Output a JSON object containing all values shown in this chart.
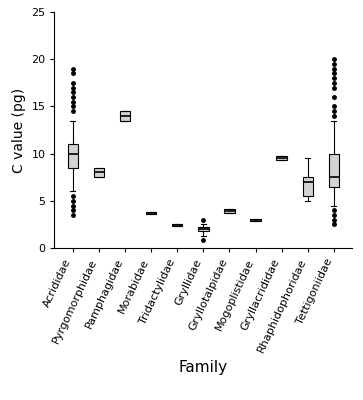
{
  "families": [
    "Acrididae",
    "Pyrgomorphidae",
    "Pamphagidae",
    "Morabidae",
    "Tridactylidae",
    "Gryllidae",
    "Gryllotalpidae",
    "Mogoplistidae",
    "Gryllacrididae",
    "Rhaphidophoridae",
    "Tettigoniidae"
  ],
  "box_stats": [
    {
      "med": 10.0,
      "q1": 8.5,
      "q3": 11.0,
      "whislo": 6.0,
      "whishi": 13.5,
      "fliers": [
        3.5,
        4.0,
        4.5,
        5.0,
        5.5,
        14.5,
        15.0,
        15.5,
        16.0,
        16.5,
        17.0,
        17.5,
        18.5,
        19.0
      ]
    },
    {
      "med": 8.0,
      "q1": 7.5,
      "q3": 8.5,
      "whislo": 7.5,
      "whishi": 8.5,
      "fliers": []
    },
    {
      "med": 14.0,
      "q1": 13.5,
      "q3": 14.5,
      "whislo": 13.5,
      "whishi": 14.5,
      "fliers": []
    },
    {
      "med": 3.7,
      "q1": 3.6,
      "q3": 3.8,
      "whislo": 3.6,
      "whishi": 3.8,
      "fliers": []
    },
    {
      "med": 2.4,
      "q1": 2.3,
      "q3": 2.5,
      "whislo": 2.3,
      "whishi": 2.5,
      "fliers": []
    },
    {
      "med": 2.0,
      "q1": 1.8,
      "q3": 2.2,
      "whislo": 1.3,
      "whishi": 2.5,
      "fliers": [
        0.8,
        3.0
      ]
    },
    {
      "med": 3.9,
      "q1": 3.7,
      "q3": 4.1,
      "whislo": 3.7,
      "whishi": 4.1,
      "fliers": []
    },
    {
      "med": 3.0,
      "q1": 2.9,
      "q3": 3.1,
      "whislo": 2.9,
      "whishi": 3.1,
      "fliers": []
    },
    {
      "med": 9.5,
      "q1": 9.3,
      "q3": 9.7,
      "whislo": 9.3,
      "whishi": 9.7,
      "fliers": []
    },
    {
      "med": 7.0,
      "q1": 5.5,
      "q3": 7.5,
      "whislo": 5.0,
      "whishi": 9.5,
      "fliers": []
    },
    {
      "med": 7.5,
      "q1": 6.5,
      "q3": 10.0,
      "whislo": 4.5,
      "whishi": 13.5,
      "fliers": [
        2.5,
        3.0,
        3.5,
        4.0,
        14.0,
        14.5,
        15.0,
        16.0,
        17.0,
        17.5,
        18.0,
        18.5,
        19.0,
        19.5,
        20.0
      ]
    }
  ],
  "ylabel": "C value (pg)",
  "xlabel": "Family",
  "ylim": [
    0,
    25
  ],
  "yticks": [
    0,
    5,
    10,
    15,
    20,
    25
  ],
  "box_color": "#d3d3d3",
  "median_color": "#000000",
  "whisker_color": "#000000",
  "flier_color": "#000000",
  "figsize": [
    3.63,
    4.0
  ],
  "dpi": 100,
  "label_fontsize": 8,
  "axis_label_fontsize": 10,
  "box_width": 0.4,
  "linewidth": 0.8
}
